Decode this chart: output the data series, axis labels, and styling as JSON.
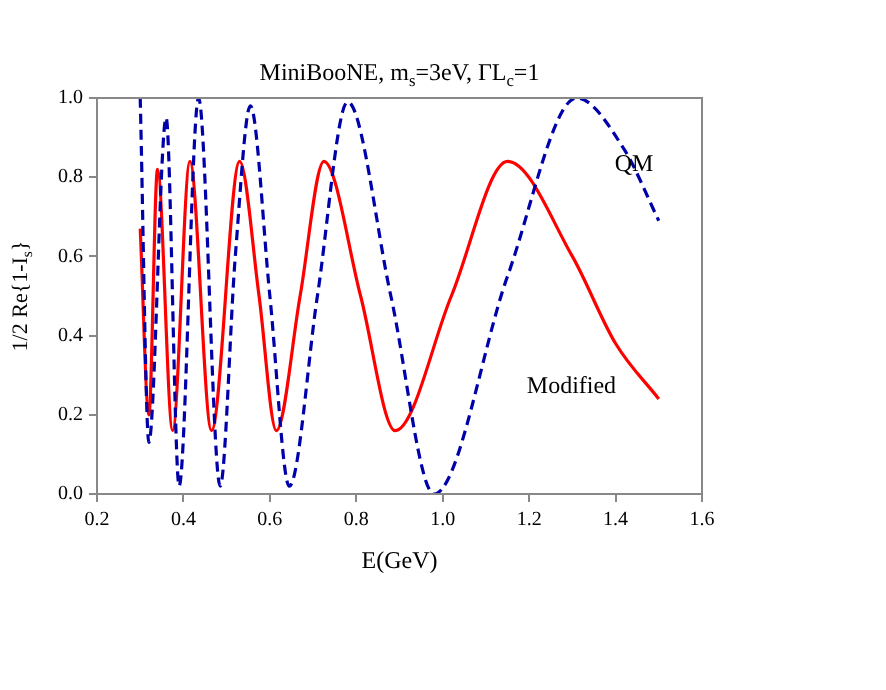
{
  "chart_data": {
    "type": "line",
    "title": "MiniBooNE, m$_{s}$=3eV, ΓL$_{c}$=1",
    "xlabel": "E(GeV)",
    "ylabel": "1/2 Re{1-I$_{s}$}",
    "xlim": [
      0.2,
      1.6
    ],
    "xticks": [
      {
        "value": 0.2,
        "label": "0.2"
      },
      {
        "value": 0.4,
        "label": "0.4"
      },
      {
        "value": 0.6,
        "label": "0.6"
      },
      {
        "value": 0.8,
        "label": "0.8"
      },
      {
        "value": 1.0,
        "label": "1.0"
      },
      {
        "value": 1.2,
        "label": "1.2"
      },
      {
        "value": 1.4,
        "label": "1.4"
      },
      {
        "value": 1.6,
        "label": "1.6"
      }
    ],
    "ylim": [
      0,
      1
    ],
    "yticks": [
      {
        "value": 0,
        "label": "0.0"
      },
      {
        "value": 0.2,
        "label": "0.2"
      },
      {
        "value": 0.4,
        "label": "0.4"
      },
      {
        "value": 0.6,
        "label": "0.6"
      },
      {
        "value": 0.8,
        "label": "0.8"
      },
      {
        "value": 1.0,
        "label": "1.0"
      }
    ],
    "grid": false,
    "legend": false,
    "series": [
      {
        "name": "QM",
        "color": "#0000aa",
        "line_style": "dashed",
        "x": [
          0.3,
          0.32,
          0.36,
          0.39,
          0.435,
          0.485,
          0.52,
          0.555,
          0.6,
          0.645,
          0.71,
          0.78,
          0.88,
          0.98,
          1.15,
          1.31,
          1.42,
          1.5
        ],
        "values": [
          1.0,
          0.13,
          0.95,
          0.02,
          1.0,
          0.02,
          0.6,
          0.98,
          0.5,
          0.02,
          0.5,
          0.99,
          0.5,
          0.0,
          0.55,
          1.0,
          0.87,
          0.69
        ]
      },
      {
        "name": "Modified",
        "color": "#ff0000",
        "line_style": "solid",
        "x": [
          0.3,
          0.32,
          0.34,
          0.375,
          0.415,
          0.465,
          0.53,
          0.575,
          0.615,
          0.67,
          0.725,
          0.81,
          0.89,
          1.02,
          1.15,
          1.3,
          1.4,
          1.5
        ],
        "values": [
          0.67,
          0.2,
          0.82,
          0.16,
          0.84,
          0.16,
          0.84,
          0.5,
          0.16,
          0.5,
          0.84,
          0.5,
          0.16,
          0.5,
          0.84,
          0.6,
          0.38,
          0.24
        ]
      }
    ]
  }
}
